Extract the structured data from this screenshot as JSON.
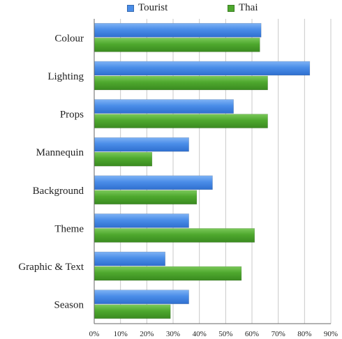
{
  "chart_data": {
    "type": "bar",
    "orientation": "horizontal",
    "categories": [
      "Colour",
      "Lighting",
      "Props",
      "Mannequin",
      "Background",
      "Theme",
      "Graphic & Text",
      "Season"
    ],
    "series": [
      {
        "name": "Tourist",
        "color": "#4a8de8",
        "values": [
          63.5,
          82,
          53,
          36,
          45,
          36,
          27,
          36
        ]
      },
      {
        "name": "Thai",
        "color": "#4ea82e",
        "values": [
          63,
          66,
          66,
          22,
          39,
          61,
          56,
          29
        ]
      }
    ],
    "xlim": [
      0,
      90
    ],
    "x_ticks": [
      "0%",
      "10%",
      "20%",
      "30%",
      "40%",
      "50%",
      "60%",
      "70%",
      "80%",
      "90%"
    ],
    "grid": "vertical",
    "legend_position": "top"
  }
}
